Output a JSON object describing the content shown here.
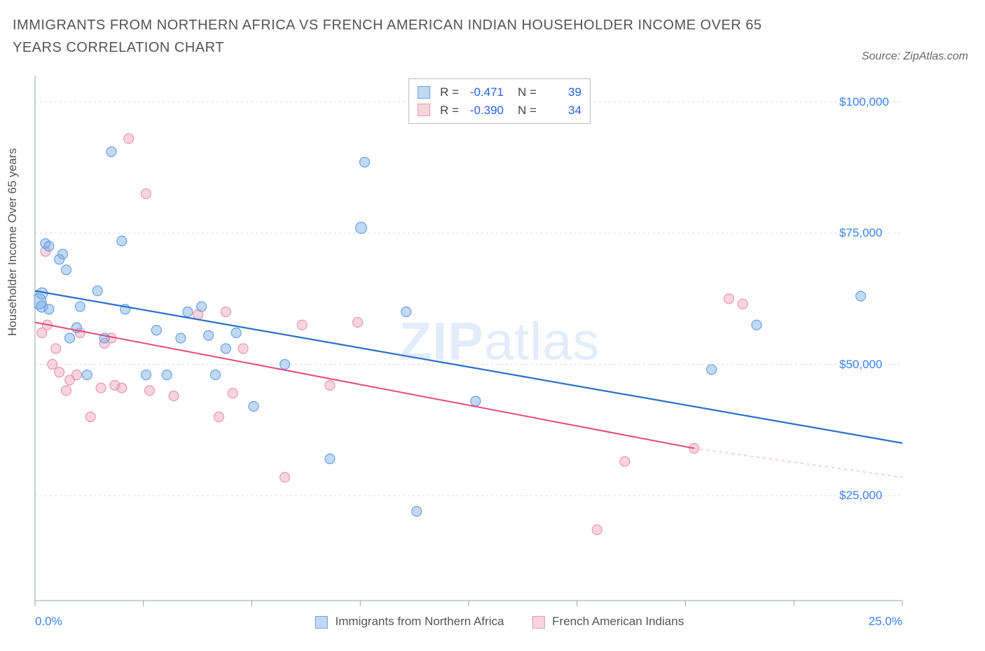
{
  "title": "IMMIGRANTS FROM NORTHERN AFRICA VS FRENCH AMERICAN INDIAN HOUSEHOLDER INCOME OVER 65 YEARS CORRELATION CHART",
  "source": "Source: ZipAtlas.com",
  "ylabel": "Householder Income Over 65 years",
  "watermark_a": "ZIP",
  "watermark_b": "atlas",
  "chart": {
    "type": "scatter",
    "background_color": "#ffffff",
    "grid_color": "#d8d8d8",
    "axis_color": "#9aa0a6",
    "tick_color": "#9aa0a6",
    "xlim": [
      0,
      25
    ],
    "ylim": [
      5000,
      105000
    ],
    "xticks": [
      0,
      25
    ],
    "xtick_labels": [
      "0.0%",
      "25.0%"
    ],
    "xtick_minor": [
      3.125,
      6.25,
      9.375,
      12.5,
      15.625,
      18.75,
      21.875
    ],
    "yticks": [
      25000,
      50000,
      75000,
      100000
    ],
    "ytick_labels": [
      "$25,000",
      "$50,000",
      "$75,000",
      "$100,000"
    ],
    "x_legend": {
      "series_a": "Immigrants from Northern Africa",
      "series_b": "French American Indians"
    },
    "legend_box": {
      "rows": [
        {
          "swatch": "a",
          "r_label": "R =",
          "r": "-0.471",
          "n_label": "N =",
          "n": "39"
        },
        {
          "swatch": "b",
          "r_label": "R =",
          "r": "-0.390",
          "n_label": "N =",
          "n": "34"
        }
      ]
    },
    "series_a": {
      "color_fill": "rgba(120,170,230,0.45)",
      "color_stroke": "#6aa2e0",
      "line_color": "#2b6fc9",
      "line_width": 2.2,
      "trend": {
        "x1": 0,
        "y1": 64000,
        "x2": 25,
        "y2": 35000
      },
      "points": [
        [
          0.1,
          62000,
          11
        ],
        [
          0.2,
          61000,
          8
        ],
        [
          0.2,
          63500,
          8
        ],
        [
          0.3,
          73000,
          7
        ],
        [
          0.4,
          60500,
          7
        ],
        [
          0.4,
          72500,
          7
        ],
        [
          0.7,
          70000,
          7
        ],
        [
          0.8,
          71000,
          7
        ],
        [
          0.9,
          68000,
          7
        ],
        [
          1.0,
          55000,
          7
        ],
        [
          1.2,
          57000,
          7
        ],
        [
          1.3,
          61000,
          7
        ],
        [
          1.5,
          48000,
          7
        ],
        [
          1.8,
          64000,
          7
        ],
        [
          2.0,
          55000,
          7
        ],
        [
          2.2,
          90500,
          7
        ],
        [
          2.5,
          73500,
          7
        ],
        [
          2.6,
          60500,
          7
        ],
        [
          3.2,
          48000,
          7
        ],
        [
          3.5,
          56500,
          7
        ],
        [
          3.8,
          48000,
          7
        ],
        [
          4.2,
          55000,
          7
        ],
        [
          4.4,
          60000,
          7
        ],
        [
          4.8,
          61000,
          7
        ],
        [
          5.0,
          55500,
          7
        ],
        [
          5.2,
          48000,
          7
        ],
        [
          5.5,
          53000,
          7
        ],
        [
          5.8,
          56000,
          7
        ],
        [
          6.3,
          42000,
          7
        ],
        [
          7.2,
          50000,
          7
        ],
        [
          8.5,
          32000,
          7
        ],
        [
          9.4,
          76000,
          8
        ],
        [
          9.5,
          88500,
          7
        ],
        [
          10.7,
          60000,
          7
        ],
        [
          11.0,
          22000,
          7
        ],
        [
          12.7,
          43000,
          7
        ],
        [
          19.5,
          49000,
          7
        ],
        [
          20.8,
          57500,
          7
        ],
        [
          23.8,
          63000,
          7
        ]
      ]
    },
    "series_b": {
      "color_fill": "rgba(240,160,185,0.45)",
      "color_stroke": "#e49ab4",
      "line_color": "#e64b7a",
      "line_dash_color": "#f2b8c8",
      "line_width": 2,
      "trend": {
        "x1": 0,
        "y1": 58000,
        "x2": 19,
        "y2": 34000
      },
      "trend_dash": {
        "x1": 19,
        "y1": 34000,
        "x2": 25,
        "y2": 28500
      },
      "points": [
        [
          0.2,
          56000,
          7
        ],
        [
          0.3,
          71500,
          7
        ],
        [
          0.35,
          57500,
          7
        ],
        [
          0.5,
          50000,
          7
        ],
        [
          0.6,
          53000,
          7
        ],
        [
          0.7,
          48500,
          7
        ],
        [
          0.9,
          45000,
          7
        ],
        [
          1.0,
          47000,
          7
        ],
        [
          1.2,
          48000,
          7
        ],
        [
          1.3,
          56000,
          7
        ],
        [
          1.6,
          40000,
          7
        ],
        [
          1.9,
          45500,
          7
        ],
        [
          2.0,
          54000,
          7
        ],
        [
          2.2,
          55000,
          7
        ],
        [
          2.3,
          46000,
          7
        ],
        [
          2.5,
          45500,
          7
        ],
        [
          2.7,
          93000,
          7
        ],
        [
          3.2,
          82500,
          7
        ],
        [
          3.3,
          45000,
          7
        ],
        [
          4.0,
          44000,
          7
        ],
        [
          4.7,
          59500,
          7
        ],
        [
          5.3,
          40000,
          7
        ],
        [
          5.5,
          60000,
          7
        ],
        [
          5.7,
          44500,
          7
        ],
        [
          6.0,
          53000,
          7
        ],
        [
          7.2,
          28500,
          7
        ],
        [
          7.7,
          57500,
          7
        ],
        [
          8.5,
          46000,
          7
        ],
        [
          9.3,
          58000,
          7
        ],
        [
          16.2,
          18500,
          7
        ],
        [
          17.0,
          31500,
          7
        ],
        [
          20.0,
          62500,
          7
        ],
        [
          20.4,
          61500,
          7
        ],
        [
          19.0,
          34000,
          7
        ]
      ]
    }
  }
}
